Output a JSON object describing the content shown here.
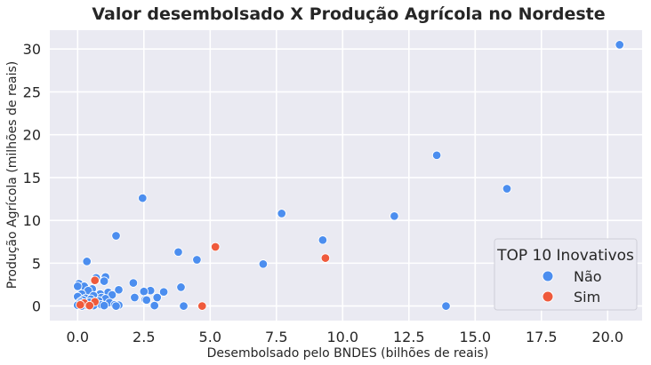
{
  "chart_data": {
    "type": "scatter",
    "title": "Valor desembolsado X Produção Agrícola no Nordeste",
    "xlabel": "Desembolsado pelo BNDES (bilhões de reais)",
    "ylabel": "Produção Agrícola (milhões de reais)",
    "xlim": [
      -1.05,
      21.3
    ],
    "ylim": [
      -1.7,
      32.2
    ],
    "x_ticks": [
      0.0,
      2.5,
      5.0,
      7.5,
      10.0,
      12.5,
      15.0,
      17.5,
      20.0
    ],
    "x_tick_labels": [
      "0.0",
      "2.5",
      "5.0",
      "7.5",
      "10.0",
      "12.5",
      "15.0",
      "17.5",
      "20.0"
    ],
    "y_ticks": [
      0,
      5,
      10,
      15,
      20,
      25,
      30
    ],
    "y_tick_labels": [
      "0",
      "5",
      "10",
      "15",
      "20",
      "25",
      "30"
    ],
    "grid": true,
    "legend": {
      "title": "TOP 10 Inovativos",
      "placement": "lower-right",
      "entries": [
        "Não",
        "Sim"
      ]
    },
    "series": [
      {
        "name": "Não",
        "color": "#4c8eef",
        "points": [
          [
            20.45,
            30.5
          ],
          [
            13.55,
            17.6
          ],
          [
            16.2,
            13.7
          ],
          [
            2.45,
            12.6
          ],
          [
            7.7,
            10.8
          ],
          [
            11.95,
            10.5
          ],
          [
            1.45,
            8.2
          ],
          [
            9.25,
            7.7
          ],
          [
            3.8,
            6.3
          ],
          [
            4.5,
            5.4
          ],
          [
            0.35,
            5.2
          ],
          [
            7.0,
            4.9
          ],
          [
            1.05,
            3.4
          ],
          [
            0.7,
            3.3
          ],
          [
            1.0,
            2.9
          ],
          [
            2.1,
            2.7
          ],
          [
            0.05,
            2.6
          ],
          [
            0.25,
            2.3
          ],
          [
            0.0,
            2.3
          ],
          [
            3.9,
            2.2
          ],
          [
            0.55,
            2.0
          ],
          [
            1.55,
            1.9
          ],
          [
            0.4,
            1.8
          ],
          [
            2.75,
            1.8
          ],
          [
            1.15,
            1.6
          ],
          [
            2.5,
            1.7
          ],
          [
            3.25,
            1.65
          ],
          [
            0.85,
            1.4
          ],
          [
            0.15,
            1.4
          ],
          [
            1.3,
            1.3
          ],
          [
            0.6,
            1.2
          ],
          [
            0.0,
            1.1
          ],
          [
            2.15,
            1.0
          ],
          [
            3.0,
            1.0
          ],
          [
            0.9,
            1.0
          ],
          [
            0.3,
            0.9
          ],
          [
            1.05,
            0.85
          ],
          [
            0.5,
            0.8
          ],
          [
            2.55,
            0.75
          ],
          [
            0.2,
            0.7
          ],
          [
            2.6,
            0.7
          ],
          [
            0.8,
            0.6
          ],
          [
            0.1,
            0.5
          ],
          [
            0.45,
            0.45
          ],
          [
            1.2,
            0.4
          ],
          [
            0.65,
            0.35
          ],
          [
            0.05,
            0.3
          ],
          [
            0.25,
            0.2
          ],
          [
            1.4,
            0.15
          ],
          [
            0.9,
            0.15
          ],
          [
            0.0,
            0.1
          ],
          [
            0.35,
            0.1
          ],
          [
            1.55,
            0.1
          ],
          [
            0.6,
            0.05
          ],
          [
            1.0,
            0.05
          ],
          [
            2.9,
            0.05
          ],
          [
            4.0,
            0.0
          ],
          [
            13.9,
            0.0
          ],
          [
            0.15,
            0.0
          ],
          [
            1.45,
            0.0
          ]
        ]
      },
      {
        "name": "Sim",
        "color": "#ef5a3c",
        "points": [
          [
            5.2,
            6.9
          ],
          [
            9.35,
            5.6
          ],
          [
            0.65,
            3.0
          ],
          [
            0.65,
            0.5
          ],
          [
            0.25,
            0.35
          ],
          [
            0.1,
            0.15
          ],
          [
            0.45,
            0.05
          ],
          [
            4.7,
            0.0
          ]
        ]
      }
    ]
  }
}
